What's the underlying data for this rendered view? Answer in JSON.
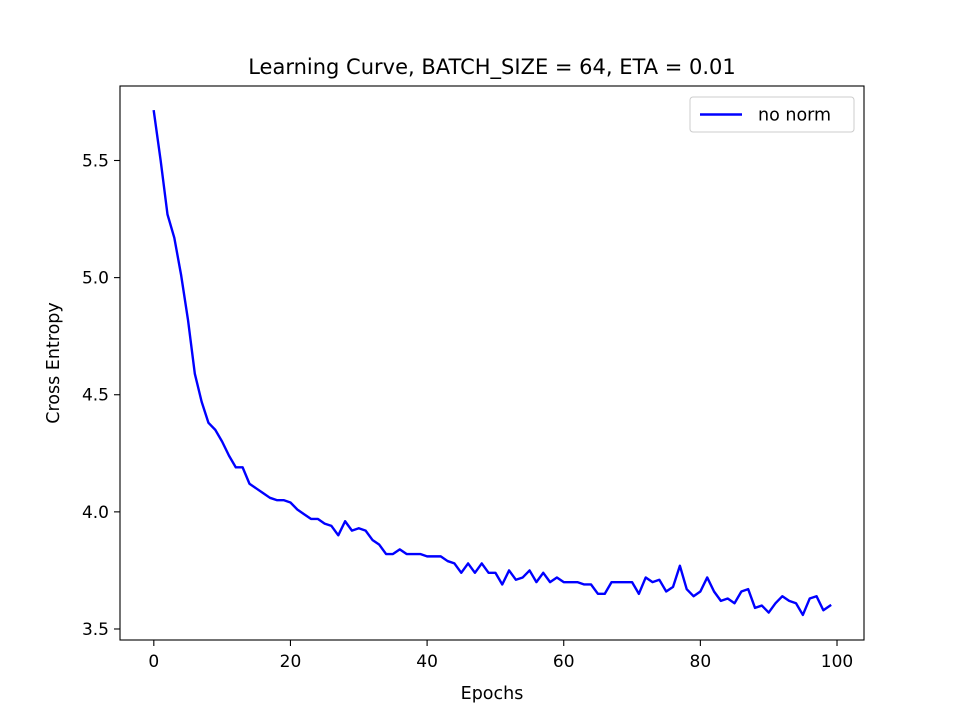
{
  "chart_data": {
    "type": "line",
    "title": "Learning Curve, BATCH_SIZE = 64, ETA = 0.01",
    "xlabel": "Epochs",
    "ylabel": "Cross Entropy",
    "xlim": [
      -4.95,
      103.95
    ],
    "ylim": [
      3.453,
      5.818
    ],
    "xticks": [
      0,
      20,
      40,
      60,
      80,
      100
    ],
    "yticks": [
      3.5,
      4.0,
      4.5,
      5.0,
      5.5
    ],
    "xtick_labels": [
      "0",
      "20",
      "40",
      "60",
      "80",
      "100"
    ],
    "ytick_labels": [
      "3.5",
      "4.0",
      "4.5",
      "5.0",
      "5.5"
    ],
    "grid": false,
    "legend": {
      "position": "top-right"
    },
    "series": [
      {
        "name": "no norm",
        "color": "#0000ff",
        "x": [
          0,
          1,
          2,
          3,
          4,
          5,
          6,
          7,
          8,
          9,
          10,
          11,
          12,
          13,
          14,
          15,
          16,
          17,
          18,
          19,
          20,
          21,
          22,
          23,
          24,
          25,
          26,
          27,
          28,
          29,
          30,
          31,
          32,
          33,
          34,
          35,
          36,
          37,
          38,
          39,
          40,
          41,
          42,
          43,
          44,
          45,
          46,
          47,
          48,
          49,
          50,
          51,
          52,
          53,
          54,
          55,
          56,
          57,
          58,
          59,
          60,
          61,
          62,
          63,
          64,
          65,
          66,
          67,
          68,
          69,
          70,
          71,
          72,
          73,
          74,
          75,
          76,
          77,
          78,
          79,
          80,
          81,
          82,
          83,
          84,
          85,
          86,
          87,
          88,
          89,
          90,
          91,
          92,
          93,
          94,
          95,
          96,
          97,
          98,
          99
        ],
        "y": [
          5.71,
          5.5,
          5.27,
          5.17,
          5.01,
          4.82,
          4.59,
          4.47,
          4.38,
          4.35,
          4.3,
          4.24,
          4.19,
          4.19,
          4.12,
          4.1,
          4.08,
          4.06,
          4.05,
          4.05,
          4.04,
          4.01,
          3.99,
          3.97,
          3.97,
          3.95,
          3.94,
          3.9,
          3.96,
          3.92,
          3.93,
          3.92,
          3.88,
          3.86,
          3.82,
          3.82,
          3.84,
          3.82,
          3.82,
          3.82,
          3.81,
          3.81,
          3.81,
          3.79,
          3.78,
          3.74,
          3.78,
          3.74,
          3.78,
          3.74,
          3.74,
          3.69,
          3.75,
          3.71,
          3.72,
          3.75,
          3.7,
          3.74,
          3.7,
          3.72,
          3.7,
          3.7,
          3.7,
          3.69,
          3.69,
          3.65,
          3.65,
          3.7,
          3.7,
          3.7,
          3.7,
          3.65,
          3.72,
          3.7,
          3.71,
          3.66,
          3.68,
          3.77,
          3.67,
          3.64,
          3.66,
          3.72,
          3.66,
          3.62,
          3.63,
          3.61,
          3.66,
          3.67,
          3.59,
          3.6,
          3.57,
          3.61,
          3.64,
          3.62,
          3.61,
          3.56,
          3.63,
          3.64,
          3.58,
          3.6
        ]
      }
    ]
  }
}
